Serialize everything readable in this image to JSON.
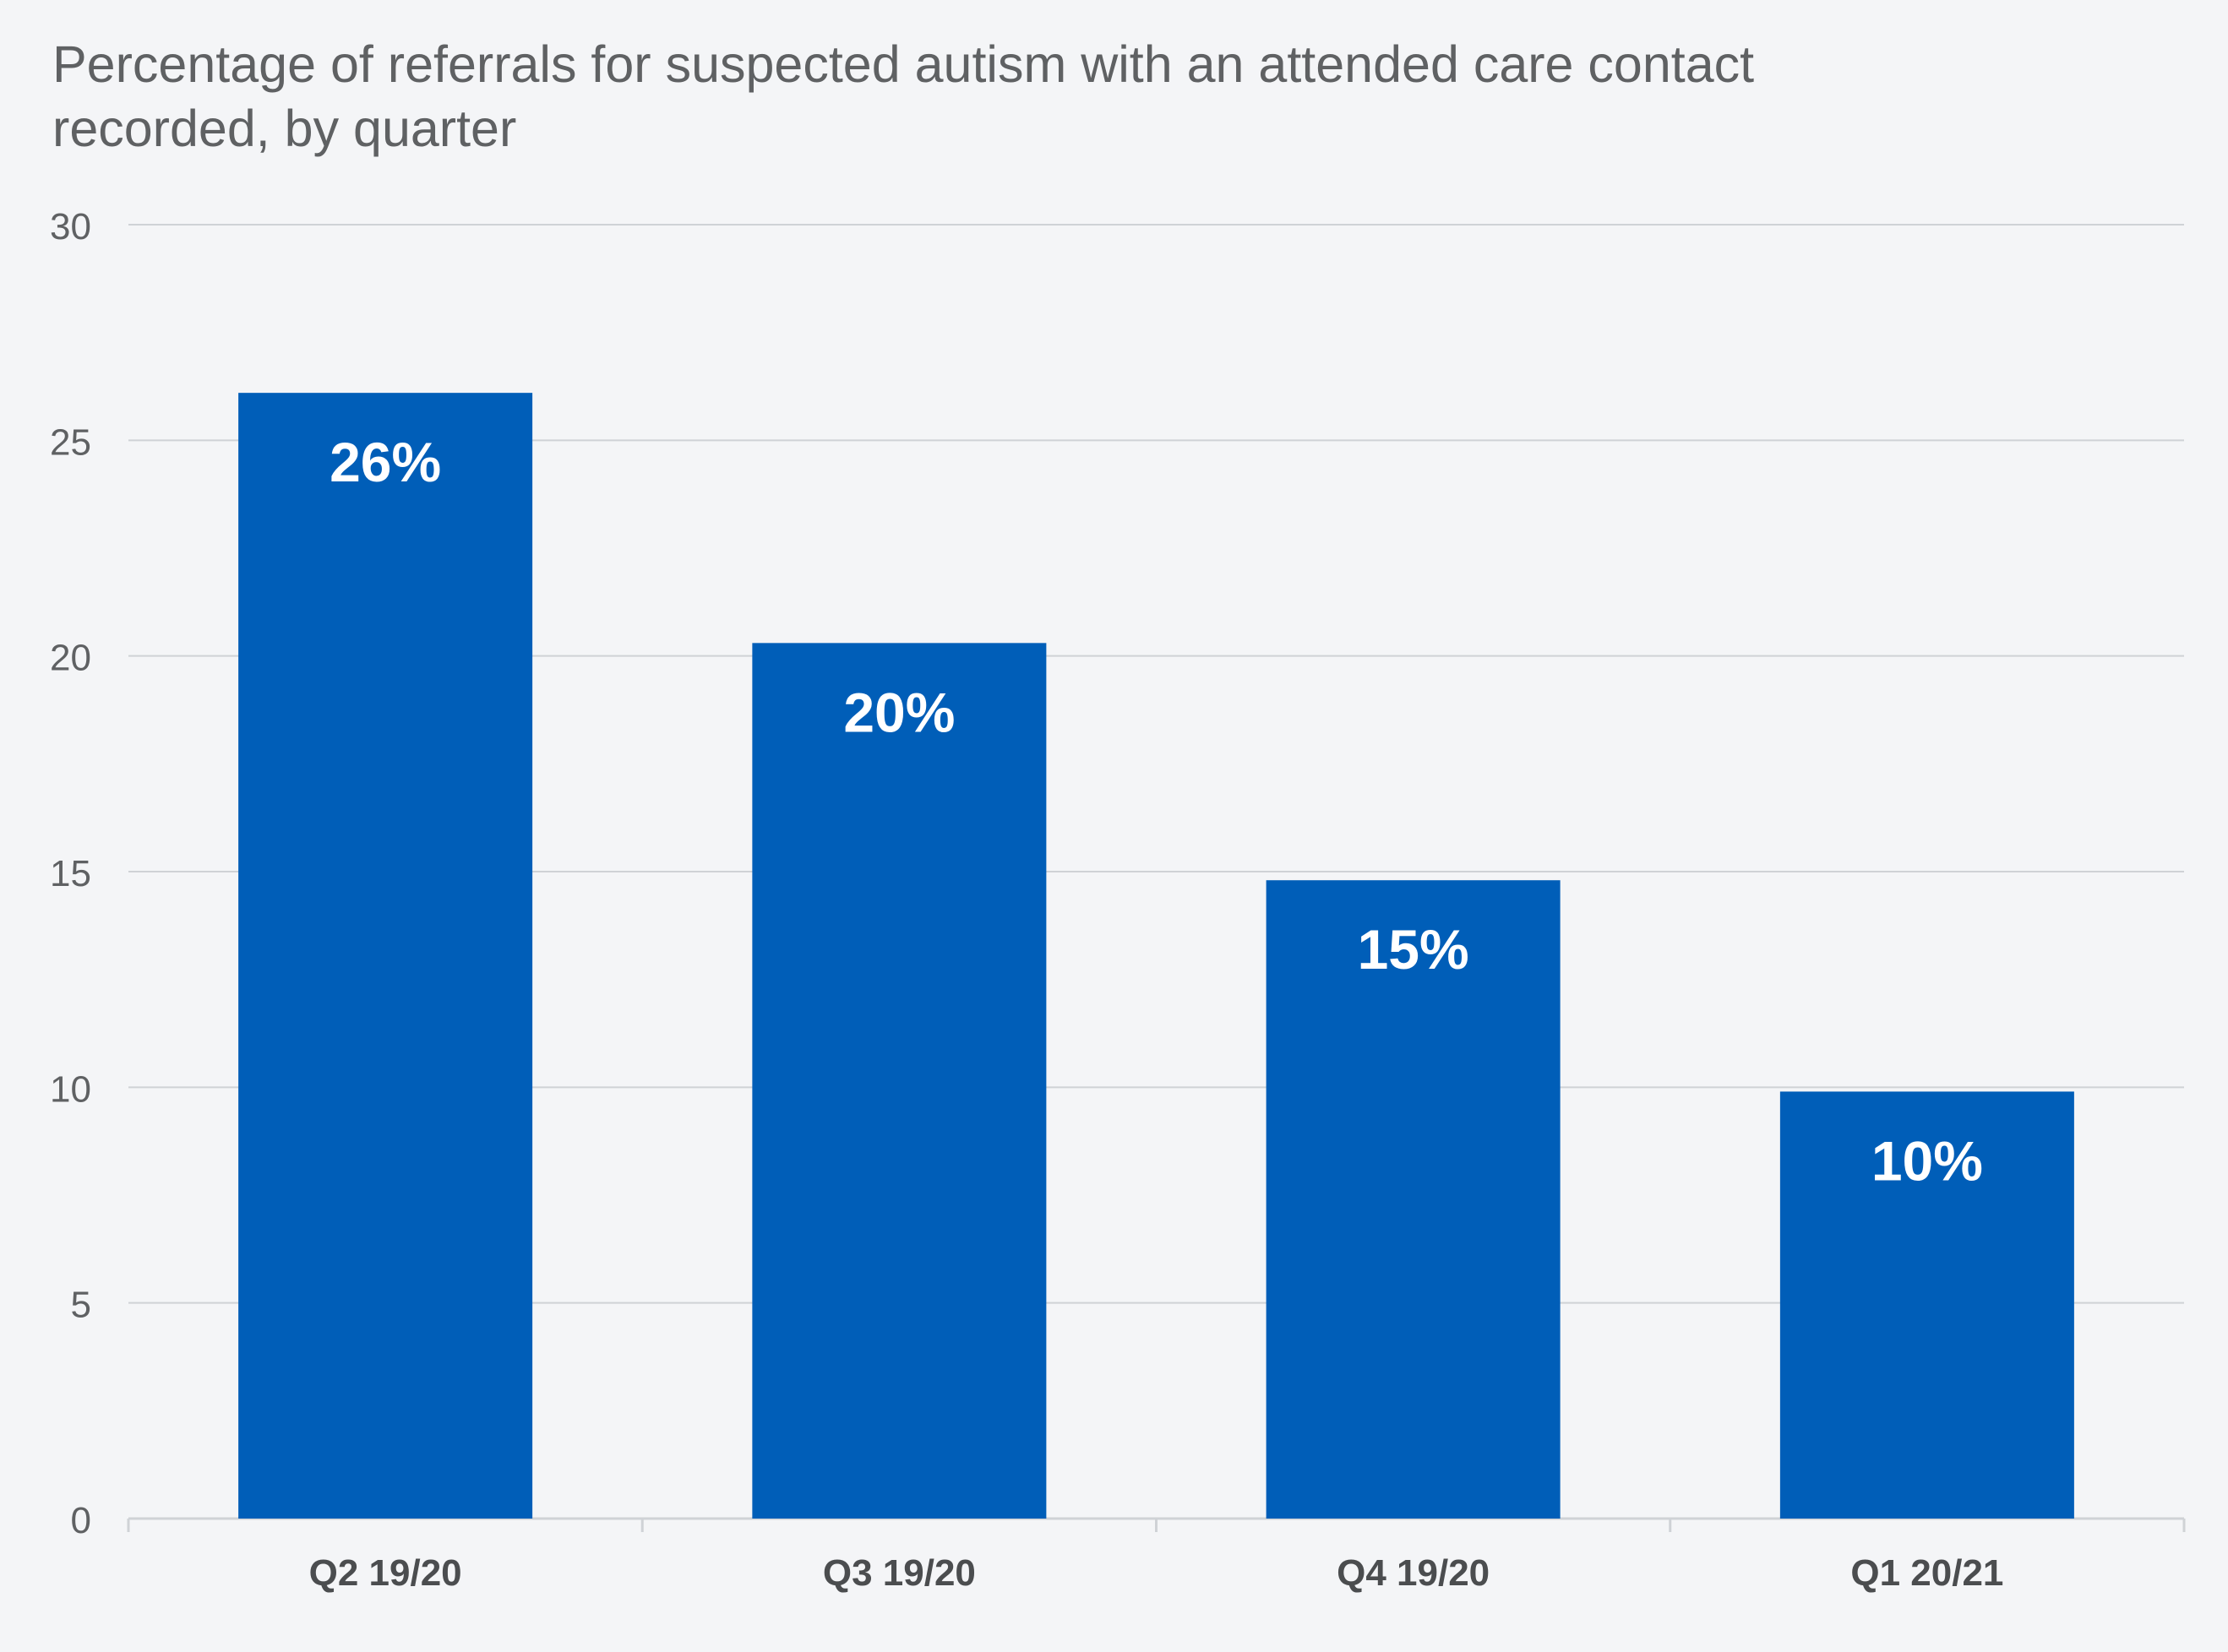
{
  "chart_data": {
    "type": "bar",
    "title": "Percentage of referrals for suspected autism with an attended care contact recorded, by quarter",
    "categories": [
      "Q2 19/20",
      "Q3 19/20",
      "Q4 19/20",
      "Q1 20/21"
    ],
    "values": [
      26.1,
      20.3,
      14.8,
      9.9
    ],
    "data_labels": [
      "26%",
      "20%",
      "15%",
      "10%"
    ],
    "xlabel": "",
    "ylabel": "",
    "ylim": [
      0,
      30
    ],
    "yticks": [
      0,
      5,
      10,
      15,
      20,
      25,
      30
    ],
    "grid": true,
    "legend": "none",
    "colors": {
      "bar": "#005eb8",
      "grid": "#cfd2d6",
      "tick_text": "#5f6163",
      "category_text": "#4b4d4f",
      "data_label_text": "#ffffff"
    }
  }
}
